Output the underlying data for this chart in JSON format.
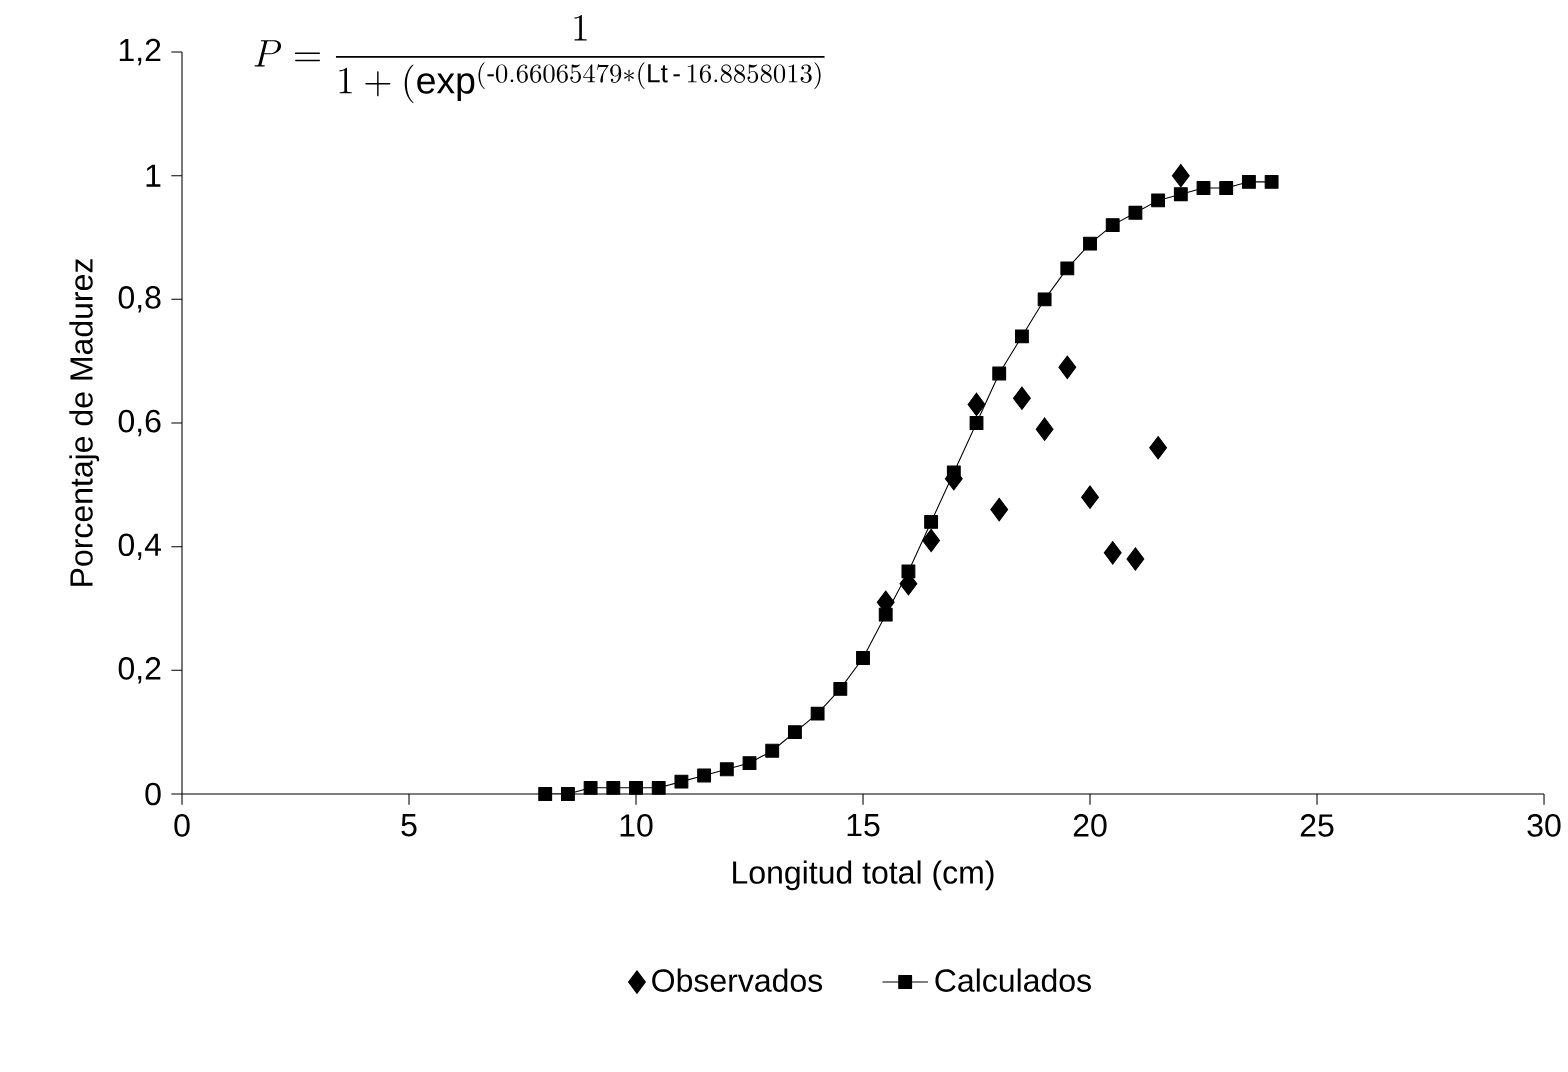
{
  "chart_data": {
    "type": "scatter",
    "title": "P=\\frac{1}{1+(\\mathrm{exp}^{(\\text{-}0.66065479*(\\mathrm{Lt}\\,\\text{-}\\,16.8858013)}}",
    "xlabel": "Longitud total (cm)",
    "ylabel": "Porcentaje de Madurez",
    "xlim": [
      0,
      30
    ],
    "xticks": [
      0,
      5,
      10,
      15,
      20,
      25,
      30
    ],
    "ylim": [
      0,
      1.2
    ],
    "yticks": [
      0,
      {
        "value": 0.2,
        "label": "0,2"
      },
      {
        "value": 0.4,
        "label": "0,4"
      },
      {
        "value": 0.6,
        "label": "0,6"
      },
      {
        "value": 0.8,
        "label": "0,8"
      },
      1,
      {
        "value": 1.2,
        "label": "1,2"
      }
    ],
    "legend": "bottom",
    "grid": false,
    "series": [
      {
        "name": "Observados",
        "marker": "diamond",
        "color": "#000000",
        "x": [
          15.5,
          16,
          16.5,
          17,
          17.5,
          18,
          18.5,
          19,
          19.5,
          20,
          20.5,
          21,
          21.5,
          22
        ],
        "values": [
          0.31,
          0.34,
          0.41,
          0.51,
          0.63,
          0.46,
          0.64,
          0.59,
          0.69,
          0.48,
          0.39,
          0.38,
          0.56,
          1.0
        ]
      },
      {
        "name": "Calculados",
        "type": "line",
        "marker": "square",
        "line_style": "solid",
        "color": "#000000",
        "x": [
          8,
          8.5,
          9,
          9.5,
          10,
          10.5,
          11,
          11.5,
          12,
          12.5,
          13,
          13.5,
          14,
          14.5,
          15,
          15.5,
          16,
          16.5,
          17,
          17.5,
          18,
          18.5,
          19,
          19.5,
          20,
          20.5,
          21,
          21.5,
          22,
          22.5,
          23,
          23.5,
          24
        ],
        "values": [
          0,
          0,
          0.01,
          0.01,
          0.01,
          0.01,
          0.02,
          0.03,
          0.04,
          0.05,
          0.07,
          0.1,
          0.13,
          0.17,
          0.22,
          0.29,
          0.36,
          0.44,
          0.52,
          0.6,
          0.68,
          0.74,
          0.8,
          0.85,
          0.89,
          0.92,
          0.94,
          0.96,
          0.97,
          0.98,
          0.98,
          0.99,
          0.99
        ]
      }
    ]
  }
}
